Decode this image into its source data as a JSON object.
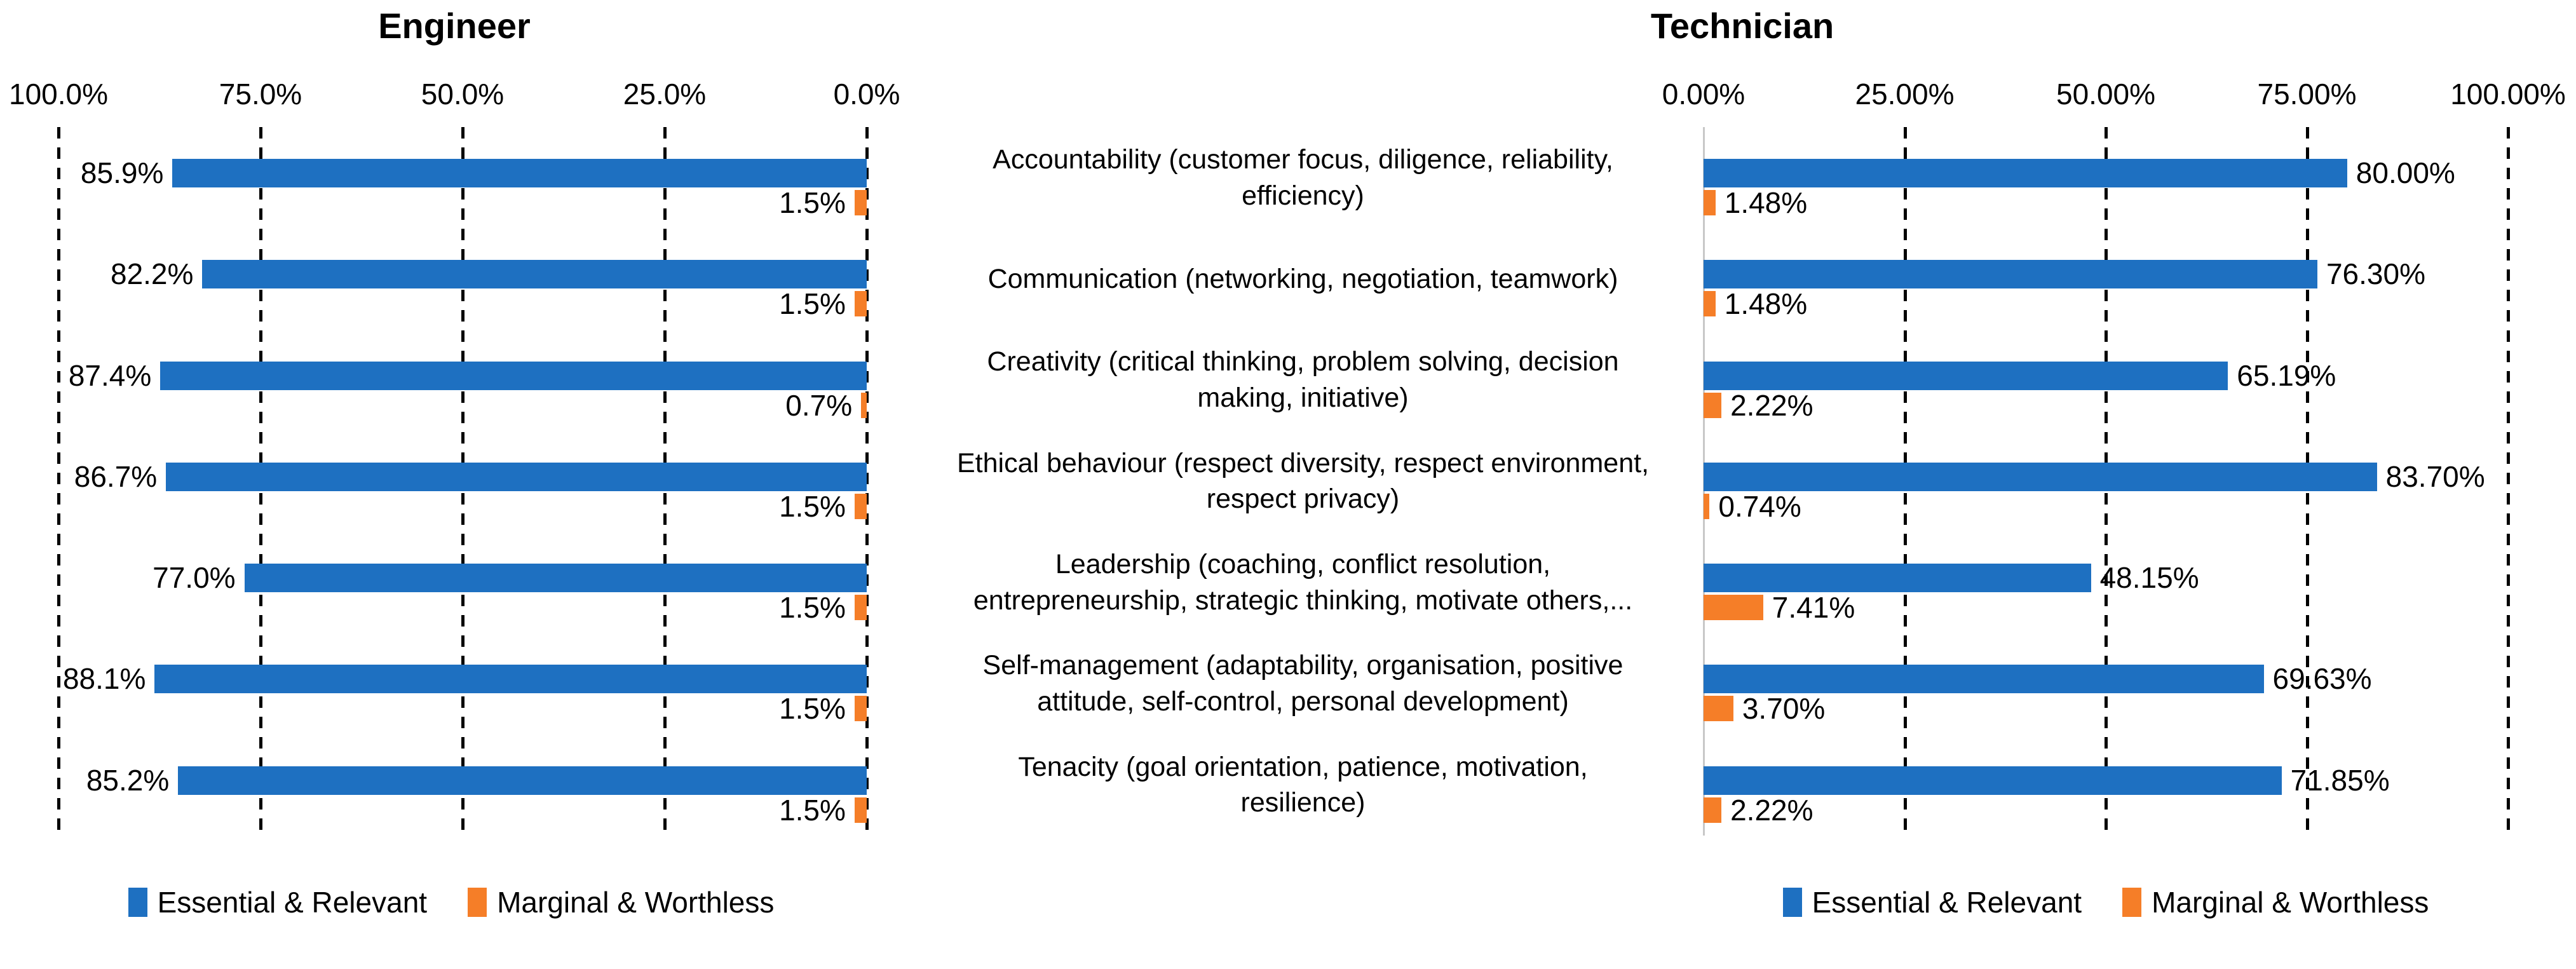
{
  "figure": {
    "description": "Two horizontal stacked-category bar charts (tornado style) comparing Engineer and Technician ratings of soft skills",
    "background_color": "#ffffff",
    "gridline_color": "#000000",
    "axis_line_color": "#c8c8c8"
  },
  "chart_data": [
    {
      "type": "bar",
      "title": "Engineer",
      "orientation": "horizontal",
      "axis": {
        "tick_labels": [
          "100.0%",
          "75.0%",
          "50.0%",
          "25.0%",
          "0.0%"
        ],
        "tick_values": [
          100,
          75,
          50,
          25,
          0
        ],
        "min": 0,
        "max": 100,
        "reversed": true,
        "gridlines": "dashed"
      },
      "categories": [
        "Accountability (customer focus, diligence, reliability,\nefficiency)",
        "Communication (networking, negotiation, teamwork)",
        "Creativity (critical thinking, problem solving, decision\nmaking, initiative)",
        "Ethical behaviour (respect diversity, respect environment,\nrespect privacy)",
        "Leadership (coaching, conflict resolution,\nentrepreneurship, strategic thinking, motivate others,...",
        "Self-management (adaptability, organisation, positive\nattitude, self-control, personal development)",
        "Tenacity (goal orientation, patience, motivation,\nresilience)"
      ],
      "category_labels_visible": false,
      "series": [
        {
          "name": "Essential & Relevant",
          "color": "#1e70c1",
          "values": [
            85.9,
            82.2,
            87.4,
            86.7,
            77.0,
            88.1,
            85.2
          ],
          "labels": [
            "85.9%",
            "82.2%",
            "87.4%",
            "86.7%",
            "77.0%",
            "88.1%",
            "85.2%"
          ]
        },
        {
          "name": "Marginal & Worthless",
          "color": "#f57e28",
          "values": [
            1.5,
            1.5,
            0.7,
            1.5,
            1.5,
            1.5,
            1.5
          ],
          "labels": [
            "1.5%",
            "1.5%",
            "0.7%",
            "1.5%",
            "1.5%",
            "1.5%",
            "1.5%"
          ]
        }
      ],
      "legend": {
        "position": "bottom",
        "entries": [
          "Essential & Relevant",
          "Marginal & Worthless"
        ]
      }
    },
    {
      "type": "bar",
      "title": "Technician",
      "orientation": "horizontal",
      "axis": {
        "tick_labels": [
          "0.00%",
          "25.00%",
          "50.00%",
          "75.00%",
          "100.00%"
        ],
        "tick_values": [
          0,
          25,
          50,
          75,
          100
        ],
        "min": 0,
        "max": 100,
        "reversed": false,
        "gridlines": "dashed"
      },
      "categories": [
        "Accountability (customer focus, diligence, reliability,\nefficiency)",
        "Communication (networking, negotiation, teamwork)",
        "Creativity (critical thinking, problem solving, decision\nmaking, initiative)",
        "Ethical behaviour (respect diversity, respect environment,\nrespect privacy)",
        "Leadership (coaching, conflict resolution,\nentrepreneurship, strategic thinking, motivate others,...",
        "Self-management (adaptability, organisation, positive\nattitude, self-control, personal development)",
        "Tenacity (goal orientation, patience, motivation,\nresilience)"
      ],
      "category_labels_visible": true,
      "series": [
        {
          "name": "Essential & Relevant",
          "color": "#1e70c1",
          "values": [
            80.0,
            76.3,
            65.19,
            83.7,
            48.15,
            69.63,
            71.85
          ],
          "labels": [
            "80.00%",
            "76.30%",
            "65.19%",
            "83.70%",
            "48.15%",
            "69.63%",
            "71.85%"
          ]
        },
        {
          "name": "Marginal & Worthless",
          "color": "#f57e28",
          "values": [
            1.48,
            1.48,
            2.22,
            0.74,
            7.41,
            3.7,
            2.22
          ],
          "labels": [
            "1.48%",
            "1.48%",
            "2.22%",
            "0.74%",
            "7.41%",
            "3.70%",
            "2.22%"
          ]
        }
      ],
      "legend": {
        "position": "bottom",
        "entries": [
          "Essential & Relevant",
          "Marginal & Worthless"
        ]
      }
    }
  ]
}
